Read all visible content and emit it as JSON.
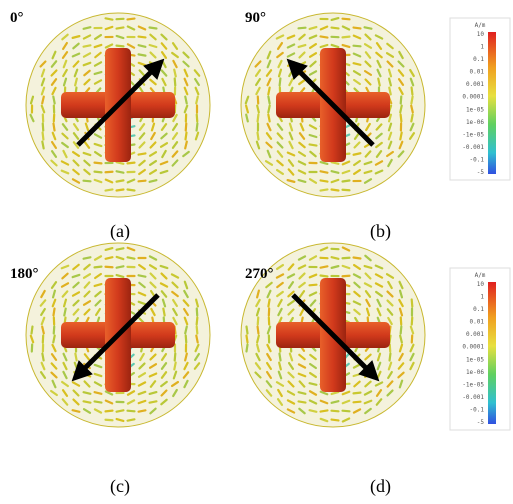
{
  "panels": [
    {
      "angle": "0°",
      "caption": "(a)"
    },
    {
      "angle": "90°",
      "caption": "(b)"
    },
    {
      "angle": "180°",
      "caption": "(c)"
    },
    {
      "angle": "270°",
      "caption": "(d)"
    }
  ],
  "colorbars": [
    {
      "unit": "A/m",
      "labels": [
        "10",
        "1",
        "0.1",
        "0.01",
        "0.001",
        "0.0001",
        "1e-05",
        "1e-06",
        "-1e-05",
        "-0.001",
        "-0.1",
        "-5"
      ]
    },
    {
      "unit": "A/m",
      "labels": [
        "10",
        "1",
        "0.1",
        "0.01",
        "0.001",
        "0.0001",
        "1e-05",
        "1e-06",
        "-1e-05",
        "-0.001",
        "-0.1",
        "-5"
      ]
    }
  ]
}
